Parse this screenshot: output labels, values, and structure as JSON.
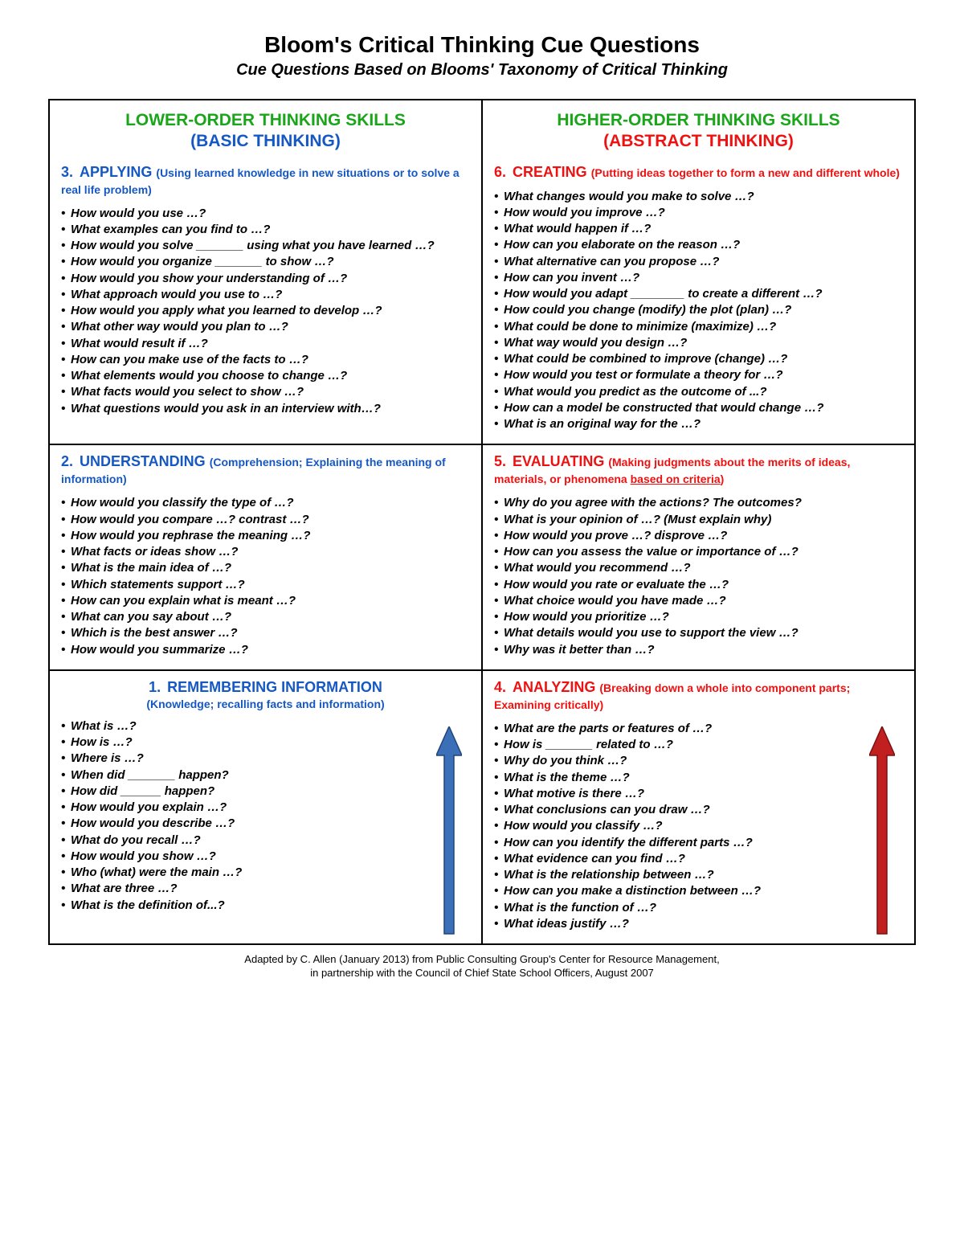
{
  "title": "Bloom's Critical Thinking Cue Questions",
  "subtitle": "Cue Questions Based on Blooms' Taxonomy of Critical Thinking",
  "columns": {
    "left": {
      "heading_line1": "LOWER-ORDER THINKING SKILLS",
      "heading_line2": "(BASIC THINKING)",
      "line1_color": "#1aa51a",
      "line2_color": "#1558c4"
    },
    "right": {
      "heading_line1": "HIGHER-ORDER THINKING SKILLS",
      "heading_line2": "(ABSTRACT THINKING)",
      "line1_color": "#1aa51a",
      "line2_color": "#e11"
    }
  },
  "sections": {
    "applying": {
      "number": "3.",
      "title": "APPLYING",
      "sub": "(Using learned knowledge in new situations or to solve a real life problem)",
      "color": "#1558c4",
      "questions": [
        "How would you use …?",
        "What examples can you find to …?",
        "How would you solve _______ using what you have learned …?",
        "How would you organize _______ to show …?",
        "How would you show your understanding of …?",
        "What approach would you use to …?",
        "How would you apply what you learned to develop …?",
        "What other way would you plan to …?",
        "What would result if …?",
        "How can you make use of the facts to …?",
        "What elements would you choose to change …?",
        "What facts would you select to show …?",
        "What questions would you ask in an interview with…?"
      ]
    },
    "creating": {
      "number": "6.",
      "title": "CREATING",
      "sub": "(Putting ideas together to form a new and different whole)",
      "color": "#e11",
      "questions": [
        "What changes would you make to solve …?",
        "How would you improve …?",
        "What would happen if …?",
        "How can you elaborate on the reason …?",
        "What alternative can you propose …?",
        "How can you invent …?",
        "How would you adapt ________ to create a different …?",
        "How could you change (modify) the plot (plan) …?",
        "What could be done to minimize (maximize) …?",
        "What way would you design …?",
        "What could be combined to improve (change) …?",
        "How would you test or formulate a theory for …?",
        "What would you predict as the outcome of ...?",
        "How can a model be constructed that would change …?",
        "What is an original way for the …?"
      ]
    },
    "understanding": {
      "number": "2.",
      "title": "UNDERSTANDING",
      "sub": "(Comprehension; Explaining the meaning of information)",
      "color": "#1558c4",
      "questions": [
        "How would you classify the type of …?",
        "How would you compare …? contrast …?",
        "How would you rephrase the meaning …?",
        "What facts or ideas show …?",
        "What is the main idea of …?",
        "Which statements support …?",
        "How can you explain what is meant …?",
        "What can you say about …?",
        "Which is the best answer …?",
        "How would you summarize …?"
      ]
    },
    "evaluating": {
      "number": "5.",
      "title": "EVALUATING",
      "sub_prefix": "(Making judgments about the merits of ideas, materials, or phenomena ",
      "sub_underlined": "based on criteria",
      "sub_suffix": ")",
      "color": "#e11",
      "questions": [
        "Why do you agree with the actions? The outcomes?",
        "What is your opinion of …? (Must explain why)",
        "How would you prove …? disprove …?",
        "How can you assess the value or importance of …?",
        "What would you recommend …?",
        "How would you rate or evaluate the …?",
        "What choice would you have made …?",
        "How would you prioritize …?",
        "What details would you use to support the view …?",
        "Why was it better than …?"
      ]
    },
    "remembering": {
      "number": "1.",
      "title": "REMEMBERING INFORMATION",
      "sub": "(Knowledge; recalling facts and information)",
      "color": "#1558c4",
      "questions": [
        "What is …?",
        "How is …?",
        "Where is …?",
        "When did _______ happen?",
        "How did ______ happen?",
        "How would you explain …?",
        "How would you describe …?",
        "What do you recall …?",
        "How would you show …?",
        "Who (what) were the main …?",
        "What are three …?",
        "What is the definition of...?"
      ],
      "arrow_color_fill": "#3b6fb8",
      "arrow_color_stroke": "#20457a"
    },
    "analyzing": {
      "number": "4.",
      "title": "ANALYZING",
      "sub": "(Breaking down a whole into component parts; Examining critically)",
      "color": "#e11",
      "questions": [
        "What are the parts or features of …?",
        "How is _______ related to …?",
        "Why do you think …?",
        "What is the theme …?",
        "What motive is there …?",
        "What conclusions can you draw …?",
        "How would you classify …?",
        "How can you identify the different parts …?",
        "What evidence can you find …?",
        "What is the relationship between …?",
        "How can you make a distinction between …?",
        "What is the function of …?",
        "What ideas justify …?"
      ],
      "arrow_color_fill": "#c22020",
      "arrow_color_stroke": "#7a1010"
    }
  },
  "footer_line1": "Adapted by C. Allen (January 2013) from Public Consulting Group's Center for Resource Management,",
  "footer_line2": "in partnership with the Council of Chief State School Officers, August 2007"
}
